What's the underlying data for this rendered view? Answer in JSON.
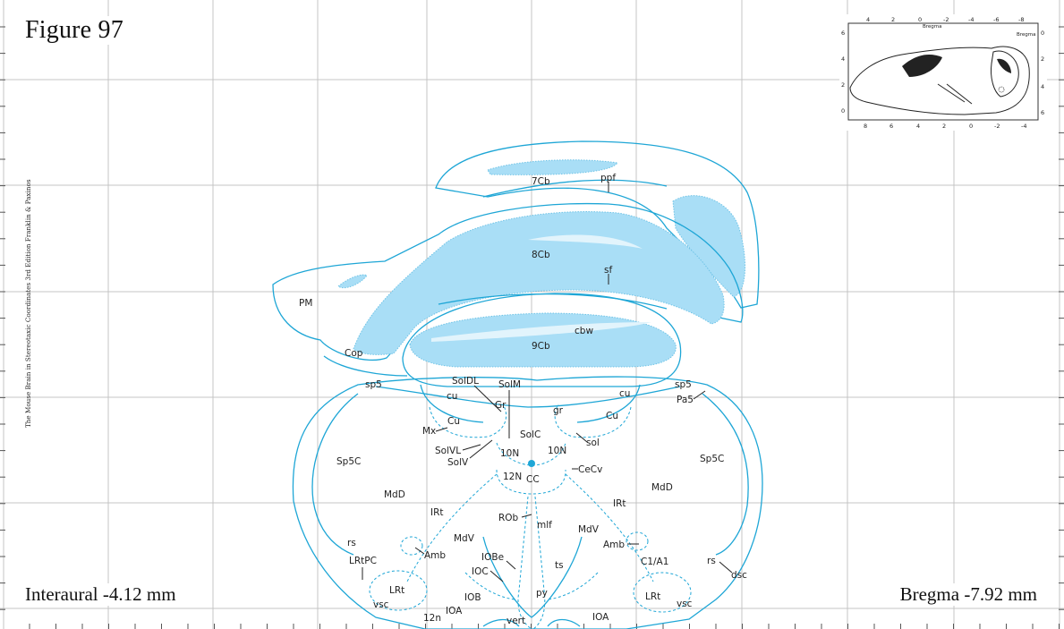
{
  "figure_title": "Figure 97",
  "side_credit": "The Mouse Brain in Stereotaxic Coordinates 3rd Edition  Franklin & Paxinos",
  "interaural": "Interaural -4.12 mm",
  "bregma": "Bregma -7.92 mm",
  "inset": {
    "bregma_label_top": "Bregma",
    "bregma_label_right": "Bregma",
    "top_ticks": [
      "4",
      "2",
      "0",
      "-2",
      "-4",
      "-6",
      "-8"
    ],
    "bottom_ticks": [
      "8",
      "6",
      "4",
      "2",
      "0",
      "-2",
      "-4"
    ],
    "left_ticks": [
      "6",
      "4",
      "2",
      "0"
    ],
    "right_ticks": [
      "0",
      "2",
      "4",
      "6"
    ]
  },
  "labels": {
    "cb7": "7Cb",
    "ppf": "ppf",
    "cb8": "8Cb",
    "sf": "sf",
    "pm": "PM",
    "cbw": "cbw",
    "cb9": "9Cb",
    "cop": "Cop",
    "sp5_l": "sp5",
    "sp5_r": "sp5",
    "pa5": "Pa5",
    "soldl": "SolDL",
    "solm": "SolM",
    "cu_l": "cu",
    "cu_r": "cu",
    "gr": "Gr",
    "gr_small": "gr",
    "cuc_l": "Cu",
    "cuc_r": "Cu",
    "mx": "Mx",
    "solc": "SolC",
    "sol": "sol",
    "solvl": "SolVL",
    "solv": "SolV",
    "n10_l": "10N",
    "n10_r": "10N",
    "n12": "12N",
    "cc": "CC",
    "cecv": "CeCv",
    "sp5c_l": "Sp5C",
    "sp5c_r": "Sp5C",
    "mdd_l": "MdD",
    "mdd_r": "MdD",
    "irt_l": "IRt",
    "irt_r": "IRt",
    "rob": "ROb",
    "mlf": "mlf",
    "mdv_l": "MdV",
    "mdv_r": "MdV",
    "amb_l": "Amb",
    "amb_r": "Amb",
    "iobe": "IOBe",
    "rs_l": "rs",
    "rs_r": "rs",
    "lrtpc": "LRtPC",
    "c1a1": "C1/A1",
    "ts": "ts",
    "ioc": "IOC",
    "dsc": "dsc",
    "lrt_l": "LRt",
    "lrt_r": "LRt",
    "iob": "IOB",
    "py": "py",
    "vsc_l": "vsc",
    "vsc_r": "vsc",
    "ioa_l": "IOA",
    "ioa_r": "IOA",
    "n12n": "12n",
    "vert": "vert"
  }
}
